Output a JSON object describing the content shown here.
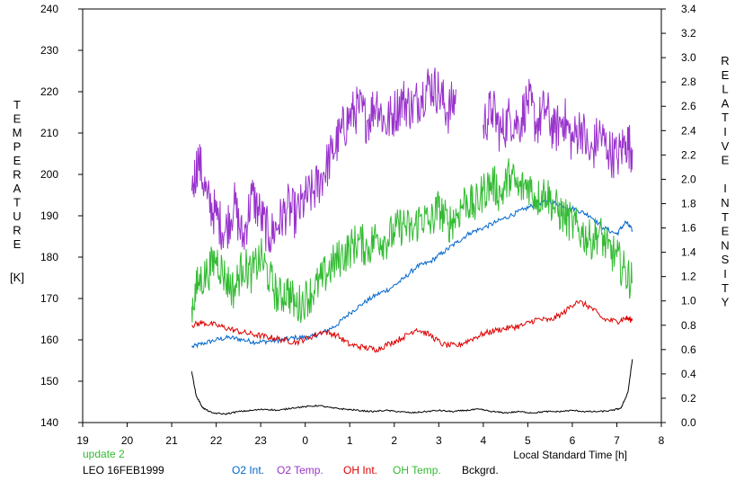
{
  "chart_data": {
    "type": "line",
    "xlabel": "Local Standard Time [h]",
    "ylabel_left": "TEMPERATURE",
    "ylabel_left_unit": "[K]",
    "ylabel_right": "RELATIVE INTENSITY",
    "x_tick_values": [
      19,
      20,
      21,
      22,
      23,
      24,
      25,
      26,
      27,
      28,
      29,
      30,
      31,
      32
    ],
    "x_tick_labels": [
      "19",
      "20",
      "21",
      "22",
      "23",
      "0",
      "1",
      "2",
      "3",
      "4",
      "5",
      "6",
      "7",
      "8"
    ],
    "y_left_ticks": [
      "140",
      "150",
      "160",
      "170",
      "180",
      "190",
      "200",
      "210",
      "220",
      "230",
      "240"
    ],
    "y_right_ticks": [
      "0.0",
      "0.2",
      "0.4",
      "0.6",
      "0.8",
      "1.0",
      "1.2",
      "1.4",
      "1.6",
      "1.8",
      "2.0",
      "2.2",
      "2.4",
      "2.6",
      "2.8",
      "3.0",
      "3.2",
      "3.4"
    ],
    "xlim": [
      19,
      32
    ],
    "ylim_left": [
      140,
      240
    ],
    "ylim_right": [
      0,
      3.4
    ],
    "grid": false,
    "series": [
      {
        "name": "O2 Int.",
        "axis": "right",
        "color": "#0066cc",
        "x": [
          21.45,
          21.7,
          22.0,
          22.3,
          22.6,
          22.9,
          23.2,
          23.5,
          23.8,
          24.1,
          24.4,
          24.7,
          25.0,
          25.3,
          25.6,
          25.9,
          26.2,
          26.5,
          26.8,
          27.1,
          27.4,
          27.7,
          28.0,
          28.3,
          28.6,
          28.9,
          29.2,
          29.5,
          29.8,
          30.1,
          30.4,
          30.7,
          31.0,
          31.2,
          31.35
        ],
        "y": [
          0.62,
          0.65,
          0.68,
          0.7,
          0.68,
          0.66,
          0.67,
          0.68,
          0.7,
          0.7,
          0.74,
          0.8,
          0.9,
          0.98,
          1.05,
          1.1,
          1.18,
          1.28,
          1.32,
          1.4,
          1.48,
          1.56,
          1.6,
          1.65,
          1.7,
          1.75,
          1.8,
          1.82,
          1.78,
          1.75,
          1.7,
          1.6,
          1.55,
          1.65,
          1.58
        ]
      },
      {
        "name": "O2 Temp.",
        "axis": "left",
        "color": "#9933cc",
        "x": [
          21.45,
          21.6,
          21.8,
          22.0,
          22.2,
          22.4,
          22.6,
          22.8,
          23.0,
          23.2,
          23.4,
          23.6,
          23.8,
          24.0,
          24.2,
          24.4,
          24.6,
          24.8,
          25.0,
          25.2,
          25.4,
          25.6,
          25.8,
          26.0,
          26.2,
          26.4,
          26.6,
          26.8,
          27.0,
          27.2,
          27.4,
          27.6,
          27.8,
          28.0,
          28.2,
          28.4,
          28.6,
          28.8,
          29.0,
          29.2,
          29.4,
          29.6,
          29.8,
          30.0,
          30.2,
          30.4,
          30.6,
          30.8,
          31.0,
          31.2,
          31.35
        ],
        "y": [
          196,
          204,
          194,
          190,
          186,
          193,
          184,
          195,
          190,
          185,
          188,
          192,
          190,
          194,
          196,
          200,
          205,
          210,
          214,
          216,
          213,
          218,
          212,
          215,
          218,
          216,
          219,
          222,
          220,
          215,
          219,
          null,
          null,
          212,
          216,
          210,
          214,
          212,
          218,
          212,
          216,
          210,
          214,
          208,
          212,
          204,
          210,
          206,
          204,
          208,
          206
        ]
      },
      {
        "name": "OH Int.",
        "axis": "right",
        "color": "#dd0000",
        "x": [
          21.45,
          21.7,
          22.0,
          22.3,
          22.6,
          22.9,
          23.2,
          23.5,
          23.8,
          24.1,
          24.4,
          24.7,
          25.0,
          25.3,
          25.6,
          25.9,
          26.2,
          26.5,
          26.8,
          27.1,
          27.4,
          27.7,
          28.0,
          28.3,
          28.6,
          28.9,
          29.2,
          29.5,
          29.8,
          30.1,
          30.4,
          30.7,
          31.0,
          31.2,
          31.35
        ],
        "y": [
          0.8,
          0.82,
          0.8,
          0.77,
          0.74,
          0.72,
          0.7,
          0.68,
          0.66,
          0.7,
          0.75,
          0.72,
          0.64,
          0.62,
          0.6,
          0.65,
          0.7,
          0.77,
          0.72,
          0.64,
          0.63,
          0.68,
          0.73,
          0.76,
          0.78,
          0.8,
          0.85,
          0.84,
          0.9,
          1.0,
          0.95,
          0.85,
          0.83,
          0.86,
          0.84
        ]
      },
      {
        "name": "OH Temp.",
        "axis": "left",
        "color": "#33bb33",
        "x": [
          21.45,
          21.6,
          21.8,
          22.0,
          22.2,
          22.4,
          22.6,
          22.8,
          23.0,
          23.2,
          23.4,
          23.6,
          23.8,
          24.0,
          24.2,
          24.4,
          24.6,
          24.8,
          25.0,
          25.2,
          25.4,
          25.6,
          25.8,
          26.0,
          26.2,
          26.4,
          26.6,
          26.8,
          27.0,
          27.2,
          27.4,
          27.6,
          27.8,
          28.0,
          28.2,
          28.4,
          28.6,
          28.8,
          29.0,
          29.2,
          29.4,
          29.6,
          29.8,
          30.0,
          30.2,
          30.4,
          30.6,
          30.8,
          31.0,
          31.2,
          31.35
        ],
        "y": [
          168,
          174,
          176,
          180,
          175,
          172,
          178,
          176,
          180,
          175,
          170,
          172,
          168,
          170,
          172,
          175,
          178,
          180,
          182,
          184,
          182,
          185,
          184,
          186,
          188,
          186,
          190,
          188,
          192,
          188,
          190,
          194,
          192,
          196,
          198,
          195,
          200,
          196,
          198,
          194,
          196,
          192,
          190,
          188,
          186,
          184,
          186,
          182,
          180,
          176,
          174
        ]
      },
      {
        "name": "Bckgrd.",
        "axis": "right",
        "color": "#000000",
        "x": [
          21.45,
          21.55,
          21.7,
          21.9,
          22.2,
          22.5,
          22.8,
          23.1,
          23.4,
          23.7,
          24.0,
          24.3,
          24.6,
          24.9,
          25.2,
          25.5,
          25.8,
          26.1,
          26.4,
          26.7,
          27.0,
          27.3,
          27.6,
          27.9,
          28.2,
          28.5,
          28.8,
          29.1,
          29.4,
          29.7,
          30.0,
          30.3,
          30.6,
          30.9,
          31.1,
          31.25,
          31.35
        ],
        "y": [
          0.42,
          0.22,
          0.12,
          0.08,
          0.07,
          0.09,
          0.1,
          0.11,
          0.1,
          0.12,
          0.13,
          0.14,
          0.12,
          0.11,
          0.1,
          0.09,
          0.1,
          0.09,
          0.08,
          0.09,
          0.1,
          0.09,
          0.1,
          0.11,
          0.09,
          0.08,
          0.09,
          0.08,
          0.09,
          0.09,
          0.1,
          0.09,
          0.09,
          0.1,
          0.12,
          0.25,
          0.52
        ]
      }
    ]
  },
  "footer": {
    "update": "update 2",
    "station": "LEO 16FEB1999",
    "legend": [
      {
        "label": "O2 Int.",
        "color": "#0066cc"
      },
      {
        "label": "O2 Temp.",
        "color": "#9933cc"
      },
      {
        "label": "OH Int.",
        "color": "#dd0000"
      },
      {
        "label": "OH Temp.",
        "color": "#33bb33"
      },
      {
        "label": "Bckgrd.",
        "color": "#000000"
      }
    ]
  },
  "colors": {
    "update_text": "#33bb33"
  }
}
